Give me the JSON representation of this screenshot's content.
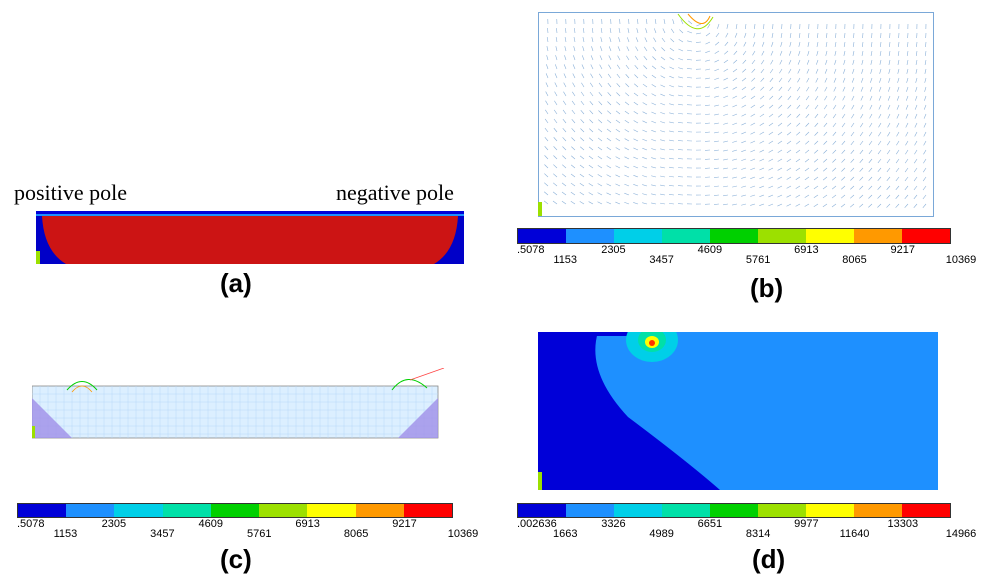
{
  "panel_a": {
    "label": "(a)",
    "left_pole": "positive pole",
    "right_pole": "negative pole"
  },
  "panel_b": {
    "label": "(b)",
    "colorbar": {
      "colors": [
        "#0000d8",
        "#1e90ff",
        "#00cfe8",
        "#00e0a8",
        "#00d000",
        "#9ce000",
        "#ffff00",
        "#ff9900",
        "#ff0000"
      ],
      "ticks": [
        ".5078",
        "1153",
        "2305",
        "3457",
        "4609",
        "5761",
        "6913",
        "8065",
        "9217",
        "10369"
      ]
    }
  },
  "panel_c": {
    "label": "(c)",
    "colorbar": {
      "colors": [
        "#0000d8",
        "#1e90ff",
        "#00cfe8",
        "#00e0a8",
        "#00d000",
        "#9ce000",
        "#ffff00",
        "#ff9900",
        "#ff0000"
      ],
      "ticks": [
        ".5078",
        "1153",
        "2305",
        "3457",
        "4609",
        "5761",
        "6913",
        "8065",
        "9217",
        "10369"
      ]
    }
  },
  "panel_d": {
    "label": "(d)",
    "colorbar": {
      "colors": [
        "#0000d8",
        "#1e90ff",
        "#00cfe8",
        "#00e0a8",
        "#00d000",
        "#9ce000",
        "#ffff00",
        "#ff9900",
        "#ff0000"
      ],
      "ticks": [
        ".002636",
        "1663",
        "3326",
        "4989",
        "6651",
        "8314",
        "9977",
        "11640",
        "13303",
        "14966"
      ]
    }
  }
}
